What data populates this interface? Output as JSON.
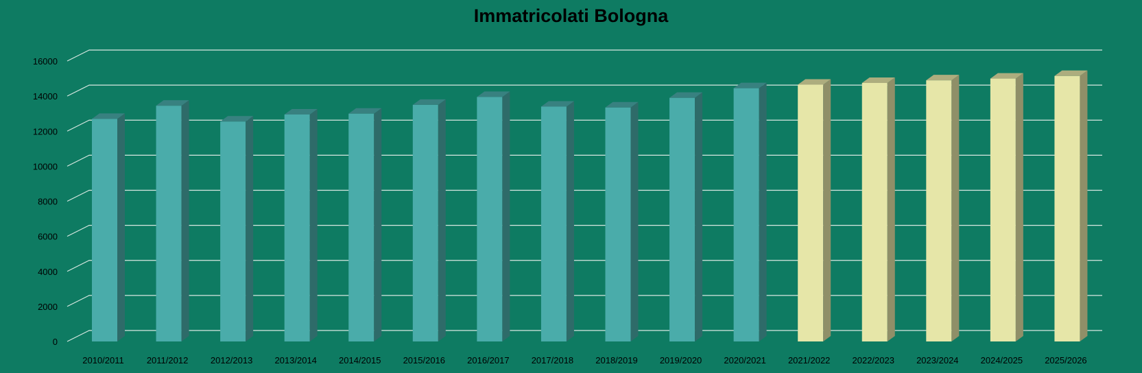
{
  "chart_data": {
    "type": "bar",
    "title": "Immatricolati Bologna",
    "xlabel": "",
    "ylabel": "",
    "ylim": [
      0,
      16000
    ],
    "yticks": [
      0,
      2000,
      4000,
      6000,
      8000,
      10000,
      12000,
      14000,
      16000
    ],
    "grid": true,
    "legend": "none",
    "categories": [
      "2010/2011",
      "2011/2012",
      "2012/2013",
      "2013/2014",
      "2014/2015",
      "2015/2016",
      "2016/2017",
      "2017/2018",
      "2018/2019",
      "2019/2020",
      "2020/2021",
      "2021/2022",
      "2022/2023",
      "2023/2024",
      "2024/2025",
      "2025/2026"
    ],
    "values": [
      12700,
      13450,
      12550,
      12950,
      13000,
      13500,
      13950,
      13400,
      13350,
      13900,
      14450,
      14650,
      14750,
      14900,
      15000,
      15150
    ],
    "colors": {
      "actual": "#4aacaa",
      "projected": "#e6e6a8",
      "gridline": "#d9e8e2",
      "background": "#0e7b62"
    },
    "projected_from_index": 11
  }
}
